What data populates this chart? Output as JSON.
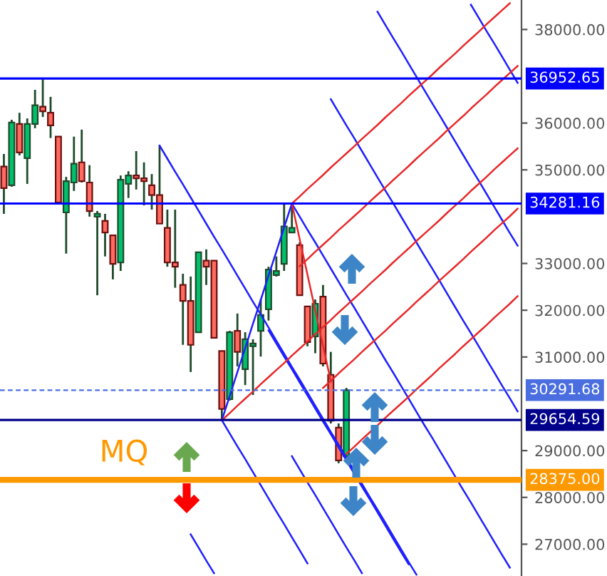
{
  "chart_data": {
    "type": "candlestick",
    "categories": [
      null,
      null,
      null,
      null,
      null,
      null,
      null,
      null,
      null,
      null,
      null,
      null,
      null,
      null,
      null,
      null,
      null,
      null,
      null,
      null,
      null,
      null,
      null,
      null,
      null,
      null,
      null,
      null,
      null,
      null,
      null,
      null,
      null,
      null,
      null,
      null,
      null,
      null,
      null,
      null,
      null,
      null,
      null,
      null,
      null,
      null,
      null,
      null,
      null,
      null,
      null,
      null,
      null,
      null,
      null,
      null,
      null,
      null,
      null,
      null,
      null,
      null,
      null,
      null,
      null,
      null,
      null
    ],
    "ohlc": [
      [
        35070,
        35340,
        34060,
        34610
      ],
      [
        34670,
        36070,
        34640,
        36010
      ],
      [
        35980,
        36220,
        35310,
        35370
      ],
      [
        35250,
        36100,
        34700,
        35980
      ],
      [
        35980,
        36710,
        35890,
        36380
      ],
      [
        36350,
        36950,
        36130,
        36250
      ],
      [
        36220,
        36560,
        35680,
        35950
      ],
      [
        35710,
        35710,
        34300,
        34300
      ],
      [
        34090,
        34850,
        33210,
        34760
      ],
      [
        34730,
        35710,
        34550,
        35130
      ],
      [
        35160,
        35860,
        34730,
        34760
      ],
      [
        34730,
        35100,
        34000,
        34120
      ],
      [
        34000,
        34120,
        32320,
        34060
      ],
      [
        33910,
        34060,
        33150,
        33660
      ],
      [
        33600,
        33600,
        32660,
        32990
      ],
      [
        33020,
        34880,
        32840,
        34790
      ],
      [
        34700,
        34970,
        34400,
        34880
      ],
      [
        34880,
        35400,
        34580,
        34820
      ],
      [
        34820,
        35160,
        34240,
        34760
      ],
      [
        34670,
        34910,
        34150,
        34460
      ],
      [
        34460,
        35520,
        33850,
        33850
      ],
      [
        33760,
        34150,
        32930,
        33020
      ],
      [
        33020,
        34150,
        32480,
        32930
      ],
      [
        32540,
        32780,
        31260,
        32200
      ],
      [
        32200,
        32720,
        30680,
        31260
      ],
      [
        31530,
        33240,
        31530,
        33240
      ],
      [
        33060,
        33300,
        32540,
        32930
      ],
      [
        33060,
        33060,
        31410,
        31410
      ],
      [
        31130,
        31130,
        29650,
        29890
      ],
      [
        30100,
        31560,
        30070,
        31530
      ],
      [
        31560,
        31930,
        30800,
        31110
      ],
      [
        30740,
        31530,
        30400,
        31380
      ],
      [
        31230,
        31380,
        30190,
        31290
      ],
      [
        31560,
        32230,
        31010,
        31900
      ],
      [
        32020,
        32930,
        31780,
        32870
      ],
      [
        32750,
        33150,
        32720,
        32840
      ],
      [
        32990,
        34270,
        32840,
        33790
      ],
      [
        33660,
        34280,
        33660,
        33760
      ],
      [
        33390,
        33450,
        32320,
        32320
      ],
      [
        32080,
        32080,
        31230,
        31320
      ],
      [
        31440,
        32230,
        31080,
        32140
      ],
      [
        32290,
        32540,
        30800,
        30860
      ],
      [
        30620,
        31110,
        29580,
        29640
      ],
      [
        29490,
        29580,
        28730,
        28790
      ],
      [
        28880,
        30340,
        28850,
        30290
      ],
      null,
      null,
      null,
      null,
      null,
      null,
      null,
      null,
      null,
      null,
      null,
      null,
      null,
      null,
      null,
      null,
      null,
      null,
      null,
      null,
      null,
      null
    ],
    "series": [
      {
        "type": "line",
        "color": "#1f1fff",
        "values": [
          null,
          null,
          null,
          null,
          null,
          null,
          null,
          null,
          null,
          null,
          null,
          null,
          null,
          null,
          null,
          null,
          null,
          null,
          null,
          null,
          null,
          null,
          null,
          null,
          null,
          null,
          null,
          null,
          null,
          null,
          null,
          null,
          null,
          null,
          null,
          null,
          null,
          null,
          null,
          null,
          null,
          null,
          null,
          null,
          null,
          null,
          null,
          null,
          38380,
          38100,
          37820,
          37550,
          37270,
          36990,
          36710,
          36430,
          36160,
          35880,
          35600,
          35320,
          35040,
          34770,
          34490,
          34210,
          33930,
          33650,
          33380
        ]
      },
      {
        "type": "line",
        "color": "#1f1fff",
        "values": [
          null,
          null,
          null,
          null,
          null,
          null,
          null,
          null,
          null,
          null,
          null,
          null,
          null,
          null,
          null,
          null,
          null,
          null,
          null,
          null,
          null,
          null,
          null,
          null,
          null,
          null,
          null,
          null,
          null,
          null,
          null,
          null,
          null,
          null,
          null,
          null,
          null,
          null,
          null,
          null,
          null,
          null,
          null,
          null,
          null,
          null,
          null,
          null,
          null,
          null,
          null,
          null,
          null,
          null,
          null,
          null,
          null,
          null,
          null,
          null,
          38530,
          38250,
          37970,
          37700,
          37420,
          37140,
          36860
        ]
      },
      {
        "type": "line",
        "color": "#1f1fff",
        "values": [
          null,
          null,
          null,
          null,
          null,
          null,
          null,
          null,
          null,
          null,
          null,
          null,
          null,
          null,
          null,
          null,
          null,
          null,
          null,
          null,
          null,
          null,
          null,
          null,
          null,
          null,
          null,
          null,
          null,
          null,
          null,
          null,
          null,
          null,
          null,
          null,
          null,
          null,
          null,
          null,
          null,
          null,
          36510,
          36230,
          35950,
          35680,
          35400,
          35120,
          34840,
          34560,
          34290,
          34010,
          33730,
          33450,
          33170,
          32900,
          32620,
          32340,
          32060,
          31780,
          31510,
          31230,
          30950,
          30670,
          30390,
          30120,
          29840
        ]
      },
      {
        "type": "line",
        "color": "#1f1fff",
        "values": [
          null,
          null,
          null,
          null,
          null,
          null,
          null,
          null,
          null,
          null,
          null,
          null,
          null,
          null,
          null,
          null,
          null,
          null,
          null,
          null,
          null,
          null,
          null,
          null,
          null,
          null,
          null,
          null,
          null,
          null,
          null,
          null,
          null,
          null,
          null,
          null,
          null,
          34280,
          34000,
          33720,
          33450,
          33170,
          32890,
          32610,
          32330,
          32060,
          31780,
          31500,
          31220,
          30940,
          30670,
          30390,
          30110,
          29830,
          29550,
          29280,
          29000,
          28720,
          28440,
          28160,
          27890,
          27610,
          27330,
          27050,
          26770,
          26500,
          null
        ]
      },
      {
        "type": "line",
        "color": "#1f1fff",
        "values": [
          null,
          null,
          null,
          null,
          null,
          null,
          null,
          null,
          null,
          null,
          null,
          null,
          null,
          null,
          null,
          null,
          null,
          null,
          null,
          null,
          null,
          null,
          null,
          null,
          null,
          null,
          null,
          null,
          29650,
          29370,
          29090,
          28820,
          28540,
          28260,
          27980,
          27700,
          27430,
          27150,
          26870,
          26590,
          null,
          null,
          null,
          null,
          null,
          null,
          null,
          null,
          null,
          null,
          null,
          null,
          null,
          null,
          null,
          null,
          null,
          null,
          null,
          null,
          null,
          null,
          null,
          null,
          null,
          null,
          null
        ]
      },
      {
        "type": "line",
        "color": "#1f1fff",
        "values": [
          null,
          null,
          null,
          null,
          null,
          null,
          null,
          null,
          null,
          null,
          null,
          null,
          null,
          null,
          null,
          null,
          null,
          null,
          null,
          null,
          null,
          null,
          null,
          null,
          27210,
          26930,
          26650,
          26380,
          null,
          null,
          null,
          null,
          null,
          null,
          null,
          null,
          null,
          null,
          null,
          null,
          null,
          null,
          null,
          null,
          null,
          null,
          null,
          null,
          null,
          null,
          null,
          null,
          null,
          null,
          null,
          null,
          null,
          null,
          null,
          null,
          null,
          null,
          null,
          null,
          null,
          null,
          null
        ]
      },
      {
        "type": "line",
        "color": "#1f1fff",
        "values": [
          null,
          null,
          null,
          null,
          null,
          null,
          null,
          null,
          null,
          null,
          null,
          null,
          null,
          null,
          null,
          null,
          null,
          null,
          null,
          null,
          35520,
          35240,
          34960,
          34690,
          34410,
          34130,
          33850,
          33570,
          33300,
          33020,
          32740,
          32460,
          32180,
          31910,
          31630,
          31350,
          31070,
          30790,
          30520,
          30240,
          29960,
          29680,
          29400,
          29130,
          28850,
          28570,
          28290,
          28010,
          27740,
          27460,
          27180,
          26900,
          26620,
          26350,
          null,
          null,
          null,
          null,
          null,
          null,
          null,
          null,
          null,
          null,
          null,
          null,
          null
        ]
      },
      {
        "type": "line",
        "color": "#1f1fff",
        "values": [
          null,
          null,
          null,
          null,
          null,
          null,
          null,
          null,
          null,
          null,
          null,
          null,
          null,
          null,
          null,
          null,
          null,
          null,
          null,
          null,
          null,
          null,
          null,
          null,
          null,
          null,
          null,
          null,
          null,
          null,
          null,
          null,
          null,
          null,
          null,
          null,
          null,
          28880,
          28600,
          28320,
          28050,
          27770,
          27490,
          27210,
          26930,
          26660,
          26380,
          null,
          null,
          null,
          null,
          null,
          null,
          null,
          null,
          null,
          null,
          null,
          null,
          null,
          null,
          null,
          null,
          null,
          null,
          null,
          null
        ]
      },
      {
        "type": "line",
        "color": "#1f1fff",
        "values": [
          null,
          null,
          null,
          null,
          null,
          null,
          null,
          null,
          null,
          null,
          null,
          null,
          null,
          null,
          null,
          null,
          null,
          null,
          null,
          null,
          null,
          null,
          null,
          null,
          null,
          null,
          null,
          null,
          null,
          null,
          null,
          null,
          null,
          null,
          31570,
          31290,
          31010,
          30740,
          30460,
          30180,
          29900,
          29620,
          29350,
          29070,
          28790,
          28510,
          28230,
          27960,
          27680,
          27400,
          27120,
          26840,
          26570,
          null,
          null,
          null,
          null,
          null,
          null,
          null,
          null,
          null,
          null,
          null,
          null,
          null,
          null
        ]
      },
      {
        "type": "line",
        "color": "#1f1fff",
        "values": [
          null,
          null,
          null,
          null,
          null,
          null,
          null,
          null,
          null,
          null,
          null,
          null,
          null,
          null,
          null,
          null,
          null,
          null,
          null,
          null,
          null,
          null,
          null,
          null,
          null,
          null,
          null,
          null,
          29650,
          30160,
          30680,
          31190,
          31710,
          32220,
          32740,
          33250,
          33770,
          34280,
          null,
          null,
          null,
          null,
          null,
          null,
          null,
          null,
          null,
          null,
          null,
          null,
          null,
          null,
          null,
          null,
          null,
          null,
          null,
          null,
          null,
          null,
          null,
          null,
          null,
          null,
          null,
          null,
          null
        ]
      },
      {
        "type": "line",
        "color": "#e8282a",
        "values": [
          null,
          null,
          null,
          null,
          null,
          null,
          null,
          null,
          null,
          null,
          null,
          null,
          null,
          null,
          null,
          null,
          null,
          null,
          null,
          null,
          null,
          null,
          null,
          null,
          null,
          null,
          null,
          null,
          null,
          null,
          null,
          null,
          null,
          null,
          null,
          null,
          null,
          34280,
          34430,
          34590,
          34740,
          34890,
          35050,
          35200,
          35350,
          35500,
          35660,
          35810,
          35960,
          36120,
          36270,
          36420,
          36580,
          36730,
          36880,
          37030,
          37190,
          37340,
          37490,
          37650,
          37800,
          37950,
          38110,
          38260,
          38410,
          38560,
          null
        ]
      },
      {
        "type": "line",
        "color": "#e8282a",
        "values": [
          null,
          null,
          null,
          null,
          null,
          null,
          null,
          null,
          null,
          null,
          null,
          null,
          null,
          null,
          null,
          null,
          null,
          null,
          null,
          null,
          null,
          null,
          null,
          null,
          null,
          null,
          null,
          null,
          null,
          null,
          null,
          null,
          null,
          null,
          null,
          null,
          null,
          null,
          32940,
          33090,
          33250,
          33400,
          33550,
          33710,
          33860,
          34010,
          34160,
          34320,
          34470,
          34620,
          34780,
          34930,
          35080,
          35240,
          35390,
          35540,
          35690,
          35850,
          36000,
          36150,
          36310,
          36460,
          36610,
          36770,
          36920,
          37070,
          37220
        ]
      },
      {
        "type": "line",
        "color": "#e8282a",
        "values": [
          null,
          null,
          null,
          null,
          null,
          null,
          null,
          null,
          null,
          null,
          null,
          null,
          null,
          null,
          null,
          null,
          null,
          null,
          null,
          null,
          null,
          null,
          null,
          null,
          null,
          null,
          null,
          null,
          29650,
          29800,
          29960,
          30110,
          30260,
          30420,
          30570,
          30720,
          30870,
          31030,
          31180,
          31330,
          31490,
          31640,
          31790,
          31950,
          32100,
          32250,
          32400,
          32560,
          32710,
          32860,
          33020,
          33170,
          33320,
          33480,
          33630,
          33780,
          33930,
          34090,
          34240,
          34390,
          34550,
          34700,
          34850,
          35010,
          35160,
          35310,
          35460
        ]
      },
      {
        "type": "line",
        "color": "#e8282a",
        "values": [
          null,
          null,
          null,
          null,
          null,
          null,
          null,
          null,
          null,
          null,
          null,
          null,
          null,
          null,
          null,
          null,
          null,
          null,
          null,
          null,
          null,
          null,
          null,
          null,
          null,
          null,
          null,
          null,
          null,
          null,
          null,
          null,
          null,
          null,
          null,
          null,
          null,
          null,
          null,
          null,
          null,
          30340,
          30490,
          30650,
          30800,
          30950,
          31110,
          31260,
          31410,
          31560,
          31720,
          31870,
          32020,
          32180,
          32330,
          32480,
          32640,
          32790,
          32940,
          33090,
          33250,
          33400,
          33550,
          33710,
          33860,
          34010,
          34170
        ]
      },
      {
        "type": "line",
        "color": "#e8282a",
        "values": [
          null,
          null,
          null,
          null,
          null,
          null,
          null,
          null,
          null,
          null,
          null,
          null,
          null,
          null,
          null,
          null,
          null,
          null,
          null,
          null,
          null,
          null,
          null,
          null,
          null,
          null,
          null,
          null,
          null,
          null,
          null,
          null,
          null,
          null,
          null,
          null,
          null,
          null,
          null,
          null,
          null,
          null,
          null,
          null,
          28930,
          29080,
          29240,
          29390,
          29540,
          29700,
          29850,
          30000,
          30150,
          30310,
          30460,
          30610,
          30770,
          30920,
          31070,
          31230,
          31380,
          31530,
          31680,
          31840,
          31990,
          32140,
          32300
        ]
      },
      {
        "type": "line",
        "color": "#e8282a",
        "values": [
          null,
          null,
          null,
          null,
          null,
          null,
          null,
          null,
          null,
          null,
          null,
          null,
          null,
          null,
          null,
          null,
          null,
          null,
          null,
          null,
          null,
          null,
          null,
          null,
          null,
          null,
          null,
          null,
          null,
          null,
          null,
          null,
          null,
          null,
          null,
          null,
          null,
          34280,
          33520,
          32760,
          32000,
          31240,
          30480,
          null,
          null,
          null,
          null,
          null,
          null,
          null,
          null,
          null,
          null,
          null,
          null,
          null,
          null,
          null,
          null,
          null,
          null,
          null,
          null,
          null,
          null,
          null,
          null
        ]
      }
    ],
    "ylim": [
      26320,
      38630
    ],
    "yticks": [
      {
        "value": 27000,
        "label": "27000.00"
      },
      {
        "value": 28000,
        "label": "28000.00"
      },
      {
        "value": 29000,
        "label": "29000.00"
      },
      {
        "value": 31000,
        "label": "31000.00"
      },
      {
        "value": 32000,
        "label": "32000.00"
      },
      {
        "value": 33000,
        "label": "33000.00"
      },
      {
        "value": 35000,
        "label": "35000.00"
      },
      {
        "value": 36000,
        "label": "36000.00"
      },
      {
        "value": 38000,
        "label": "38000.00"
      }
    ],
    "ref_lines": [
      {
        "axis": "y",
        "value": 36952.65,
        "label": "36952.65",
        "color": "#0000ff",
        "line_style": "solid"
      },
      {
        "axis": "y",
        "value": 34281.16,
        "label": "34281.16",
        "color": "#0000ff",
        "line_style": "solid"
      },
      {
        "axis": "y",
        "value": 30291.68,
        "label": "30291.68",
        "color": "#4a6ee0",
        "line_style": "dashed"
      },
      {
        "axis": "y",
        "value": 29654.59,
        "label": "29654.59",
        "color": "#00008b",
        "line_style": "solid"
      },
      {
        "axis": "y",
        "value": 28375.0,
        "label": "28375.00",
        "color": "#ff9900",
        "line_style": "solid"
      }
    ],
    "annotations": [
      "MQ"
    ]
  }
}
